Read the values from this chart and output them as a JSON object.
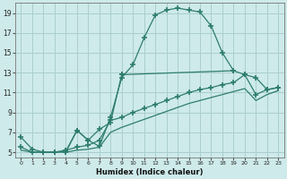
{
  "xlabel": "Humidex (Indice chaleur)",
  "bg_color": "#ceeaea",
  "grid_color": "#aacece",
  "line_color": "#2e7d6e",
  "xlim": [
    -0.5,
    23.5
  ],
  "ylim": [
    4.5,
    20.0
  ],
  "xticks": [
    0,
    1,
    2,
    3,
    4,
    5,
    6,
    7,
    8,
    9,
    10,
    11,
    12,
    13,
    14,
    15,
    16,
    17,
    18,
    19,
    20,
    21,
    22,
    23
  ],
  "yticks": [
    5,
    7,
    9,
    11,
    13,
    15,
    17,
    19
  ],
  "series1_x": [
    0,
    1,
    2,
    3,
    4,
    5,
    6,
    7,
    8,
    9,
    10,
    11,
    12,
    13,
    14,
    15,
    16,
    17,
    18,
    19
  ],
  "series1_y": [
    6.5,
    5.3,
    5.0,
    5.0,
    5.1,
    7.2,
    6.2,
    5.6,
    8.5,
    12.5,
    13.8,
    16.5,
    18.8,
    19.3,
    19.5,
    19.3,
    19.1,
    17.7,
    15.0,
    13.2
  ],
  "series2_x": [
    0,
    1,
    2,
    3,
    4,
    5,
    6,
    7,
    8,
    9,
    10,
    11,
    12,
    13,
    14,
    15,
    16,
    17,
    18,
    19,
    20,
    21,
    22,
    23
  ],
  "series2_y": [
    5.5,
    5.0,
    5.0,
    5.0,
    5.2,
    5.5,
    5.7,
    6.2,
    8.2,
    8.5,
    9.0,
    9.4,
    9.8,
    10.2,
    10.6,
    11.0,
    11.3,
    11.5,
    11.8,
    12.0,
    12.8,
    10.8,
    11.3,
    11.5
  ],
  "series3_x": [
    0,
    1,
    2,
    3,
    4,
    5,
    6,
    7,
    8,
    9,
    10,
    11,
    12,
    13,
    14,
    15,
    16,
    17,
    18,
    19,
    20,
    21,
    22,
    23
  ],
  "series3_y": [
    5.2,
    5.0,
    5.0,
    5.0,
    5.0,
    5.2,
    5.3,
    5.5,
    7.0,
    7.5,
    7.9,
    8.3,
    8.7,
    9.1,
    9.5,
    9.9,
    10.2,
    10.5,
    10.8,
    11.1,
    11.4,
    10.2,
    10.8,
    11.2
  ],
  "series4_x": [
    4,
    5,
    6,
    7,
    8,
    9,
    19,
    20,
    21,
    22,
    23
  ],
  "series4_y": [
    5.0,
    7.2,
    6.2,
    7.3,
    8.0,
    12.8,
    13.2,
    12.8,
    12.5,
    11.3,
    11.5
  ]
}
